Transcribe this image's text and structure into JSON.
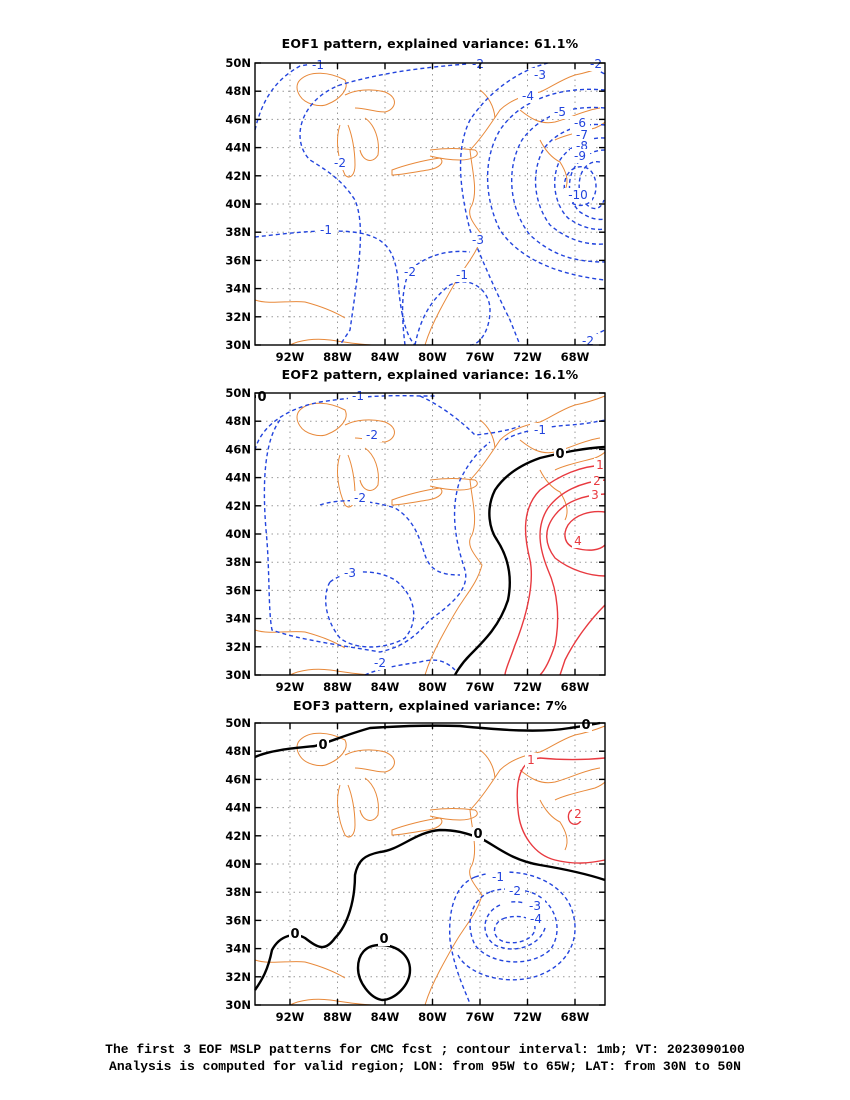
{
  "panels": [
    {
      "title": "EOF1 pattern, explained variance: 61.1%"
    },
    {
      "title": "EOF2 pattern, explained variance: 16.1%"
    },
    {
      "title": "EOF3 pattern, explained variance: 7%"
    }
  ],
  "axes": {
    "y_ticks": [
      "50N",
      "48N",
      "46N",
      "44N",
      "42N",
      "40N",
      "38N",
      "36N",
      "34N",
      "32N",
      "30N"
    ],
    "x_ticks": [
      "92W",
      "88W",
      "84W",
      "80W",
      "76W",
      "72W",
      "68W"
    ]
  },
  "colors": {
    "negative": "#2244dd",
    "positive": "#e8393f",
    "zero": "#000000",
    "coast": "#e8893a",
    "grid": "#999999"
  },
  "footer": {
    "line1": "The first 3 EOF MSLP patterns for CMC fcst ; contour interval: 1mb; VT: 2023090100",
    "line2": "Analysis is computed for valid region; LON: from 95W to 65W; LAT: from 30N to 50N"
  },
  "contour_labels": {
    "eof1": [
      "-1",
      "-2",
      "-3",
      "-4",
      "-5",
      "-6",
      "-7",
      "-8",
      "-9",
      "-10",
      "-2",
      "-1",
      "-3",
      "-2",
      "-1",
      "-2",
      "-2"
    ],
    "eof2": [
      "-1",
      "-2",
      "-2",
      "-3",
      "-2",
      "-1",
      "0",
      "1",
      "2",
      "3",
      "4",
      "0"
    ],
    "eof3": [
      "0",
      "0",
      "0",
      "0",
      "0",
      "1",
      "2",
      "-1",
      "-2",
      "-3",
      "-4"
    ]
  }
}
